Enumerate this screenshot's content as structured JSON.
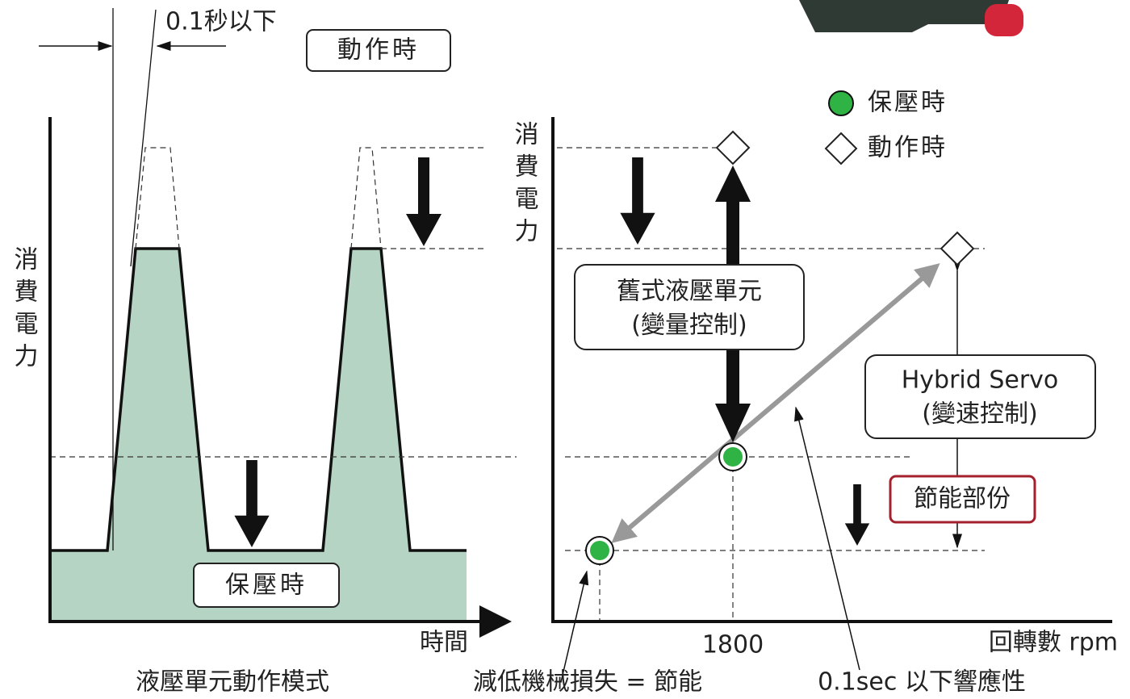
{
  "left": {
    "time_label": "0.1秒以下",
    "action_box": "動作時",
    "y_label": "消費電力",
    "hold_box": "保壓時",
    "x_label": "時間",
    "caption": "液壓單元動作模式"
  },
  "right": {
    "y_label": "消費電力",
    "legend": {
      "hold": "保壓時",
      "action": "動作時"
    },
    "old_unit": {
      "line1": "舊式液壓單元",
      "line2": "(變量控制)"
    },
    "hybrid": {
      "line1": "Hybrid Servo",
      "line2": "(變速控制)"
    },
    "saving": "節能部份",
    "x_tick": 1800,
    "x_label": "回轉數 rpm",
    "note_loss": "減低機械損失 = 節能",
    "note_response": "0.1sec 以下響應性"
  }
}
